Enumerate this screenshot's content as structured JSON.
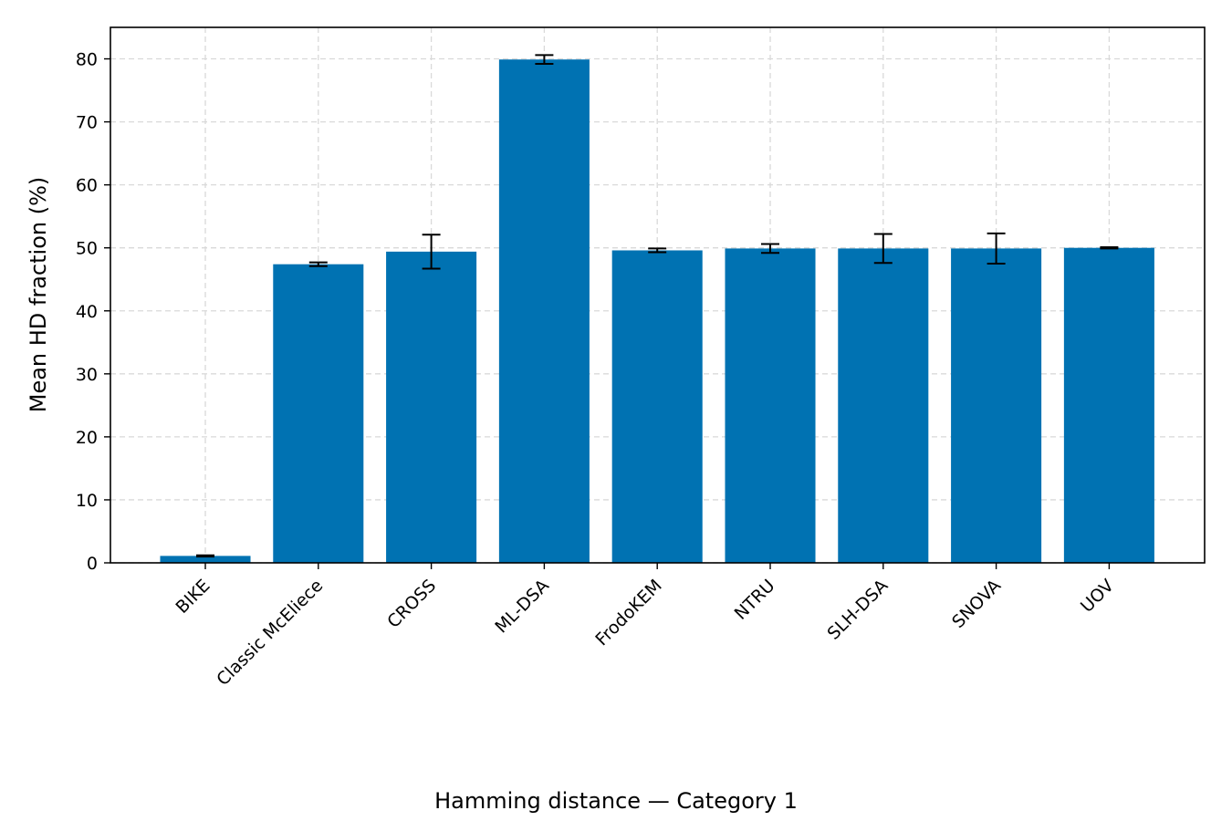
{
  "chart_data": {
    "type": "bar",
    "categories": [
      "BIKE",
      "Classic McEliece",
      "CROSS",
      "ML-DSA",
      "FrodoKEM",
      "NTRU",
      "SLH-DSA",
      "SNOVA",
      "UOV"
    ],
    "values": [
      1.1,
      47.4,
      49.4,
      79.9,
      49.6,
      49.9,
      49.9,
      49.9,
      50.0
    ],
    "errors": [
      0.1,
      0.3,
      2.7,
      0.7,
      0.3,
      0.7,
      2.3,
      2.4,
      0.1
    ],
    "ylabel": "Mean HD fraction (%)",
    "xlabel": "",
    "ylim": [
      0,
      85
    ],
    "yticks": [
      0,
      10,
      20,
      30,
      40,
      50,
      60,
      70,
      80
    ],
    "grid": true,
    "bar_color": "#0072b2",
    "caption": "Hamming distance — Category 1"
  }
}
